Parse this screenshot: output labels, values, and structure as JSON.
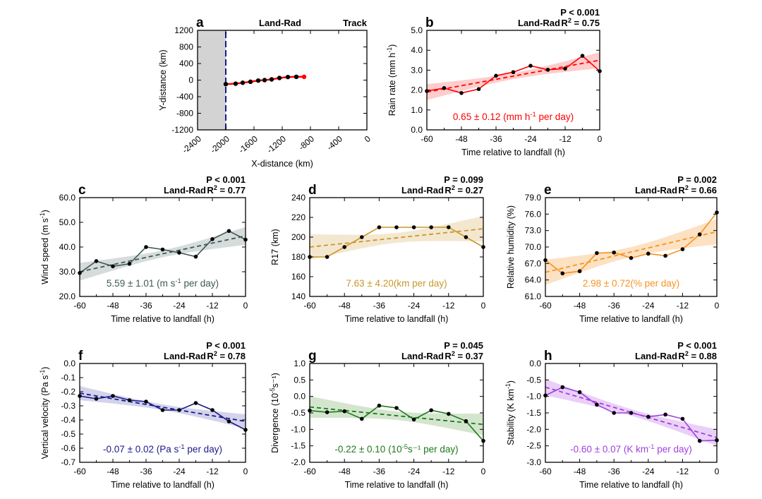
{
  "chart_data": [
    {
      "id": "a",
      "type": "line",
      "letter": "a",
      "title": "Land-Rad",
      "right_title": "Track",
      "xlabel": "X-distance (km)",
      "ylabel": "Y-distance (km)",
      "xlim": [
        -2400,
        0
      ],
      "ylim": [
        -1200,
        1200
      ],
      "xticks": [
        -2400,
        -2000,
        -1600,
        -1200,
        -800,
        -400,
        0
      ],
      "yticks": [
        1200,
        800,
        400,
        0,
        -400,
        -800,
        -1200
      ],
      "land_region": [
        -2400,
        -2000
      ],
      "land_color": "#d3d3d3",
      "coastline_x": -2000,
      "coastline_color": "#1a1a8a",
      "track_color": "#ff0000",
      "x": [
        -2000,
        -1860,
        -1760,
        -1650,
        -1540,
        -1450,
        -1350,
        -1240,
        -1120,
        -1000,
        -890
      ],
      "y": [
        -97,
        -86,
        -63,
        -40,
        -11,
        0,
        17,
        51,
        74,
        80,
        80
      ]
    },
    {
      "id": "b",
      "type": "line",
      "letter": "b",
      "title": "Land-Rad",
      "p": "P < 0.001",
      "r2": "0.75",
      "ylabel": "Rain rate (mm h",
      "ylabel_sup": "-1",
      "ylabel_end": ")",
      "xlabel": "Time relative to landfall (h)",
      "ylim": [
        0,
        5
      ],
      "yticks": [
        0,
        1,
        2,
        3,
        4,
        5
      ],
      "ytick_decimals": 1,
      "color": "#ff0000",
      "band_color": "#ffc4c4",
      "annotation": "0.65 ± 0.12 (mm h",
      "annotation_sup": "-1",
      "annotation_end": " per day)",
      "x": [
        -60,
        -54,
        -48,
        -42,
        -36,
        -30,
        -24,
        -18,
        -12,
        -6,
        0
      ],
      "y": [
        1.95,
        2.1,
        1.85,
        2.05,
        2.72,
        2.9,
        3.22,
        3.02,
        3.08,
        3.72,
        2.95
      ],
      "trend": [
        1.9,
        3.5
      ],
      "ci_halfwidth": {
        "ends": 0.4,
        "center": 0.15
      }
    },
    {
      "id": "c",
      "type": "line",
      "letter": "c",
      "title": "Land-Rad",
      "p": "P < 0.001",
      "r2": "0.77",
      "ylabel": "Wind speed (m s",
      "ylabel_sup": "-1",
      "ylabel_end": ")",
      "xlabel": "Time relative to landfall (h)",
      "ylim": [
        20,
        60
      ],
      "yticks": [
        20,
        30,
        40,
        50,
        60
      ],
      "ytick_decimals": 1,
      "color": "#3d5a55",
      "band_color": "#cfd6d5",
      "annotation": "5.59 ± 1.01 (m s",
      "annotation_sup": "-1",
      "annotation_end": " per day)",
      "x": [
        -60,
        -54,
        -48,
        -42,
        -36,
        -30,
        -24,
        -18,
        -12,
        -6,
        0
      ],
      "y": [
        29.5,
        34.3,
        32.2,
        33.2,
        40.0,
        39.0,
        37.7,
        36.1,
        43.2,
        46.5,
        43.0
      ],
      "trend": [
        30.0,
        44.5
      ],
      "ci_halfwidth": {
        "ends": 3.6,
        "center": 1.4
      }
    },
    {
      "id": "d",
      "type": "line",
      "letter": "d",
      "title": "Land-Rad",
      "p": "P = 0.099",
      "r2": "0.27",
      "ylabel": "R17 (km)",
      "ylabel_sup": "",
      "ylabel_end": "",
      "xlabel": "Time relative to landfall (h)",
      "ylim": [
        140,
        240
      ],
      "yticks": [
        140,
        160,
        180,
        200,
        220,
        240
      ],
      "ytick_decimals": 0,
      "color": "#c8982a",
      "band_color": "#f2e3c8",
      "annotation": "7.63 ± 4.20(km per day)",
      "annotation_sup": "",
      "annotation_end": "",
      "x": [
        -60,
        -54,
        -48,
        -42,
        -36,
        -30,
        -24,
        -18,
        -12,
        -6,
        0
      ],
      "y": [
        180,
        180,
        190,
        200,
        210,
        210,
        210,
        210,
        210,
        200,
        190
      ],
      "trend": [
        190,
        208.5
      ],
      "ci_halfwidth": {
        "ends": 13,
        "center": 5
      }
    },
    {
      "id": "e",
      "type": "line",
      "letter": "e",
      "title": "Land-Rad",
      "p": "P = 0.002",
      "r2": "0.66",
      "ylabel": "Relative humidity (%)",
      "ylabel_sup": "",
      "ylabel_end": "",
      "xlabel": "Time relative to landfall (h)",
      "ylim": [
        61,
        79
      ],
      "yticks": [
        61,
        64,
        67,
        70,
        73,
        76,
        79
      ],
      "ytick_decimals": 1,
      "color": "#f7931e",
      "band_color": "#fddcb8",
      "annotation": "2.98 ± 0.72(% per day)",
      "annotation_sup": "",
      "annotation_end": "",
      "x": [
        -60,
        -54,
        -48,
        -42,
        -36,
        -30,
        -24,
        -18,
        -12,
        -6,
        0
      ],
      "y": [
        67.6,
        65.2,
        65.6,
        68.9,
        69.0,
        68.0,
        68.8,
        68.4,
        69.6,
        72.3,
        76.3
      ],
      "trend": [
        65.4,
        72.8
      ],
      "ci_halfwidth": {
        "ends": 2.3,
        "center": 0.9
      }
    },
    {
      "id": "f",
      "type": "line",
      "letter": "f",
      "title": "Land-Rad",
      "p": "P < 0.001",
      "r2": "0.78",
      "ylabel": "Vertical velocity (Pa s",
      "ylabel_sup": "-1",
      "ylabel_end": ")",
      "xlabel": "Time relative to landfall (h)",
      "ylim": [
        -0.7,
        0
      ],
      "yticks": [
        0,
        -0.1,
        -0.2,
        -0.3,
        -0.4,
        -0.5,
        -0.6,
        -0.7
      ],
      "ytick_decimals": 1,
      "color": "#1a1a8a",
      "band_color": "#cbcbe8",
      "annotation": "-0.07 ± 0.02 (Pa s",
      "annotation_sup": "-1",
      "annotation_end": " per day)",
      "x": [
        -60,
        -54,
        -48,
        -42,
        -36,
        -30,
        -24,
        -18,
        -12,
        -6,
        0
      ],
      "y": [
        -0.23,
        -0.25,
        -0.23,
        -0.26,
        -0.27,
        -0.33,
        -0.33,
        -0.28,
        -0.33,
        -0.41,
        -0.47
      ],
      "trend": [
        -0.21,
        -0.41
      ],
      "ci_halfwidth": {
        "ends": 0.05,
        "center": 0.02
      }
    },
    {
      "id": "g",
      "type": "line",
      "letter": "g",
      "title": "Land-Rad",
      "p": "P = 0.045",
      "r2": "0.37",
      "ylabel": "Divergence (10",
      "ylabel_sup": "-5",
      "ylabel_end": "s⁻¹)",
      "xlabel": "Time relative to landfall (h)",
      "ylim": [
        -2,
        1
      ],
      "yticks": [
        1,
        0.5,
        0,
        -0.5,
        -1,
        -1.5,
        -2
      ],
      "ytick_decimals": 1,
      "color": "#1e7a1e",
      "band_color": "#cde0c6",
      "annotation": "-0.22 ± 0.10 (10",
      "annotation_sup": "-5",
      "annotation_end": "s⁻¹ per day)",
      "x": [
        -60,
        -54,
        -48,
        -42,
        -36,
        -30,
        -24,
        -18,
        -12,
        -6,
        0
      ],
      "y": [
        -0.43,
        -0.48,
        -0.45,
        -0.68,
        -0.28,
        -0.35,
        -0.7,
        -0.42,
        -0.53,
        -0.75,
        -1.35
      ],
      "trend": [
        -0.32,
        -0.85
      ],
      "ci_halfwidth": {
        "ends": 0.33,
        "center": 0.13
      }
    },
    {
      "id": "h",
      "type": "line",
      "letter": "h",
      "title": "Land-Rad",
      "p": "P < 0.001",
      "r2": "0.88",
      "ylabel": "Stability (K km",
      "ylabel_sup": "-1",
      "ylabel_end": ")",
      "xlabel": "Time relative to landfall (h)",
      "ylim": [
        -3,
        0
      ],
      "yticks": [
        0,
        -0.5,
        -1,
        -1.5,
        -2,
        -2.5,
        -3
      ],
      "ytick_decimals": 1,
      "color": "#a040e0",
      "band_color": "#e6c8f6",
      "annotation": "-0.60 ± 0.07 (K km",
      "annotation_sup": "-1",
      "annotation_end": " per day)",
      "x": [
        -60,
        -54,
        -48,
        -42,
        -36,
        -30,
        -24,
        -18,
        -12,
        -6,
        0
      ],
      "y": [
        -0.97,
        -0.72,
        -0.87,
        -1.25,
        -1.5,
        -1.5,
        -1.62,
        -1.55,
        -1.68,
        -2.35,
        -2.33
      ],
      "trend": [
        -0.72,
        -2.25
      ],
      "ci_halfwidth": {
        "ends": 0.25,
        "center": 0.1
      }
    }
  ],
  "shared": {
    "time_ticks": [
      -60,
      -48,
      -36,
      -24,
      -12,
      0
    ],
    "time_xlim": [
      -60,
      0
    ]
  }
}
